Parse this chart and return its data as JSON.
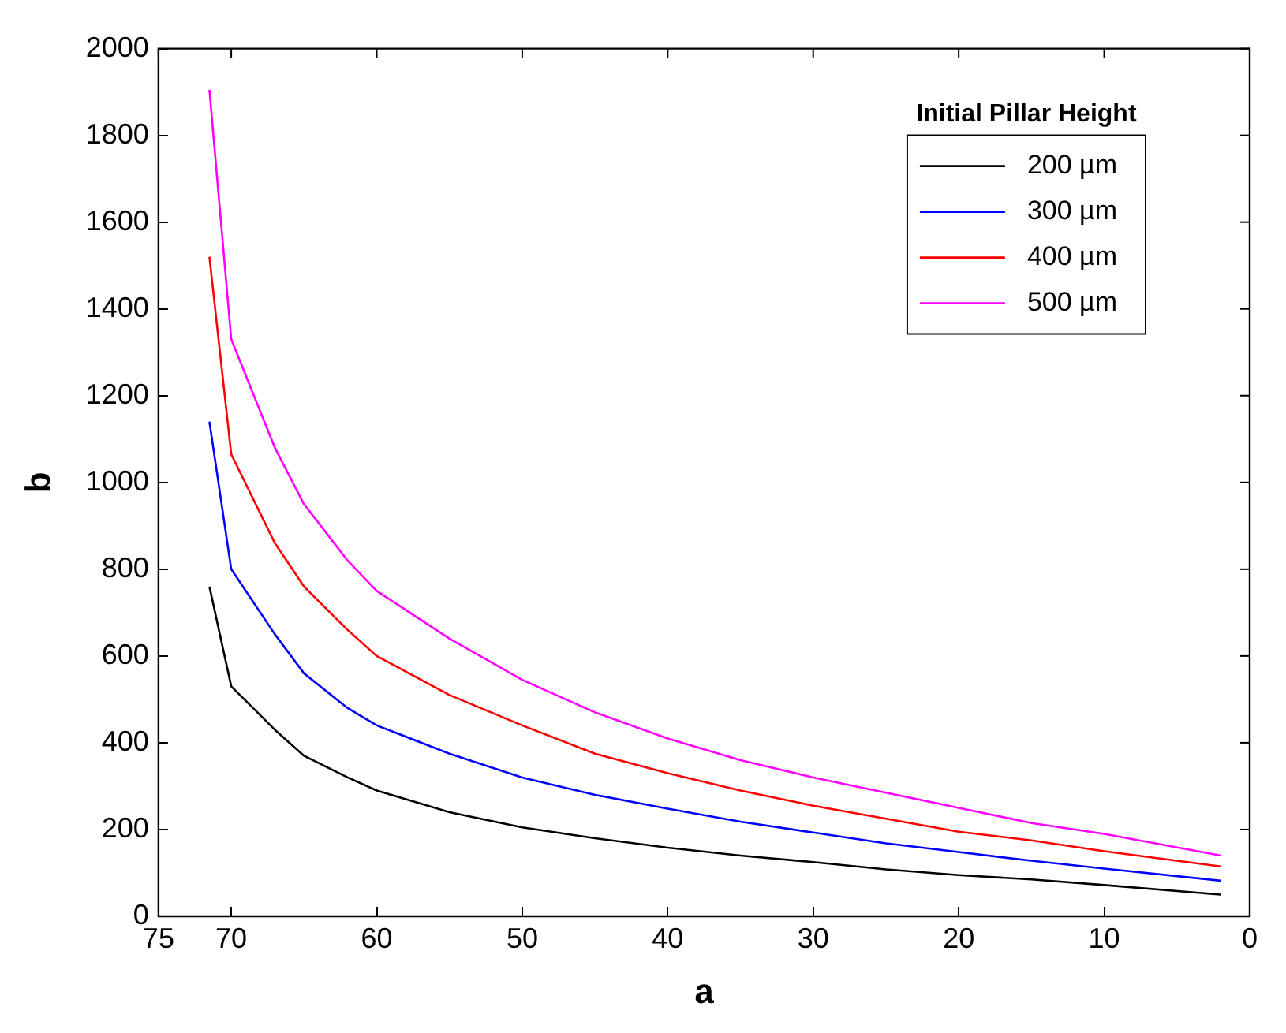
{
  "chart_data": {
    "type": "line",
    "xlabel": "a",
    "ylabel": "b",
    "legend_title": "Initial Pillar Height",
    "legend": "top right",
    "grid": false,
    "marker": "none",
    "line_style": "solid",
    "x": [
      71.5,
      70,
      67,
      65,
      62,
      60,
      55,
      50,
      45,
      40,
      35,
      30,
      25,
      20,
      15,
      10,
      2
    ],
    "xlim": [
      75,
      0
    ],
    "xticks": [
      75,
      70,
      60,
      50,
      40,
      30,
      20,
      10,
      0
    ],
    "ylim": [
      0,
      2000
    ],
    "yticks": [
      0,
      200,
      400,
      600,
      800,
      1000,
      1200,
      1400,
      1600,
      1800,
      2000
    ],
    "series": [
      {
        "name": "200 µm",
        "color": "#000000",
        "values": [
          760,
          530,
          430,
          370,
          320,
          290,
          240,
          205,
          180,
          158,
          140,
          125,
          108,
          95,
          85,
          72,
          50
        ]
      },
      {
        "name": "300 µm",
        "color": "#0000ff",
        "values": [
          1140,
          800,
          650,
          560,
          480,
          440,
          375,
          320,
          280,
          248,
          218,
          193,
          168,
          148,
          128,
          110,
          82
        ]
      },
      {
        "name": "400 µm",
        "color": "#ff0000",
        "values": [
          1520,
          1065,
          860,
          760,
          660,
          600,
          510,
          440,
          375,
          330,
          290,
          255,
          225,
          195,
          175,
          150,
          115
        ]
      },
      {
        "name": "500 µm",
        "color": "#ff00ff",
        "values": [
          1905,
          1330,
          1080,
          950,
          820,
          750,
          640,
          545,
          470,
          410,
          360,
          320,
          285,
          250,
          215,
          190,
          140
        ]
      }
    ]
  }
}
